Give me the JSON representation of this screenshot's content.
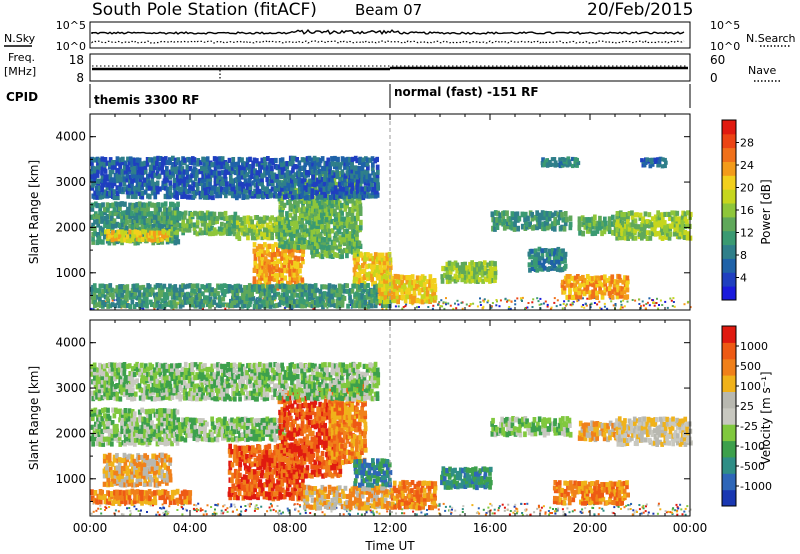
{
  "header": {
    "station": "South Pole Station (fitACF)",
    "beam": "Beam 07",
    "date": "20/Feb/2015"
  },
  "noise_panel": {
    "left_label": "N.Sky",
    "right_label": "N.Search",
    "left_ticks": [
      "10^5",
      "10^0"
    ],
    "right_ticks": [
      "10^5",
      "10^0"
    ]
  },
  "freq_panel": {
    "left_label_1": "Freq.",
    "left_label_2": "[MHz]",
    "left_ticks": [
      "18",
      "8"
    ],
    "right_label": "Nave",
    "right_ticks": [
      "60",
      "0"
    ]
  },
  "cpid": {
    "label": "CPID",
    "segments": [
      {
        "name": "themis 3300 RF",
        "start_h": 0,
        "end_h": 12
      },
      {
        "name": "normal (fast) -151 RF",
        "start_h": 12,
        "end_h": 24
      }
    ]
  },
  "colors": {
    "power": [
      "#1a1adc",
      "#1f3fc0",
      "#1f62a8",
      "#2f7f8a",
      "#3a9a72",
      "#5fa85a",
      "#8ec63a",
      "#c6d61e",
      "#f2d01c",
      "#f39b1a",
      "#f0701a",
      "#ec4414",
      "#e01a10"
    ],
    "velocity": [
      "#1a38b2",
      "#2e66b8",
      "#2f8e86",
      "#3da04c",
      "#80c83e",
      "#c8c8c0",
      "#b8b8b0",
      "#f0b21a",
      "#f0801a",
      "#ee5a14",
      "#e01a10"
    ]
  },
  "chart_data": [
    {
      "type": "heatmap",
      "name": "power",
      "ylabel": "Slant Range [km]",
      "ylim": [
        180,
        4500
      ],
      "y_ticks": [
        "1000",
        "2000",
        "3000",
        "4000"
      ],
      "xlim_hours": [
        0,
        24
      ],
      "colorbar_label": "Power [dB]",
      "colorbar_ticks": [
        "4",
        "8",
        "12",
        "16",
        "20",
        "24",
        "28"
      ],
      "clim": [
        0,
        32
      ],
      "features": [
        {
          "t0": 0.0,
          "t1": 3.5,
          "r0": 1600,
          "r1": 2500,
          "v": 11
        },
        {
          "t0": 0.5,
          "t1": 3.2,
          "r0": 1650,
          "r1": 1900,
          "v": 21
        },
        {
          "t0": 3.2,
          "t1": 5.8,
          "r0": 1800,
          "r1": 2300,
          "v": 12
        },
        {
          "t0": 5.8,
          "t1": 7.8,
          "r0": 1700,
          "r1": 2200,
          "v": 15
        },
        {
          "t0": 6.5,
          "t1": 8.5,
          "r0": 600,
          "r1": 1600,
          "v": 24
        },
        {
          "t0": 7.5,
          "t1": 9.5,
          "r0": 1500,
          "r1": 3000,
          "v": 14
        },
        {
          "t0": 8.8,
          "t1": 10.8,
          "r0": 1300,
          "r1": 3200,
          "v": 13
        },
        {
          "t0": 10.5,
          "t1": 12.0,
          "r0": 700,
          "r1": 1400,
          "v": 20
        },
        {
          "t0": 0.0,
          "t1": 12.0,
          "r0": 200,
          "r1": 700,
          "v": 10
        },
        {
          "t0": 11.5,
          "t1": 13.8,
          "r0": 300,
          "r1": 900,
          "v": 22
        },
        {
          "t0": 0.0,
          "t1": 11.5,
          "r0": 2600,
          "r1": 3500,
          "v": 6
        },
        {
          "t0": 14.0,
          "t1": 16.2,
          "r0": 750,
          "r1": 1200,
          "v": 17
        },
        {
          "t0": 16.0,
          "t1": 19.2,
          "r0": 1900,
          "r1": 2300,
          "v": 10
        },
        {
          "t0": 19.5,
          "t1": 21.5,
          "r0": 1800,
          "r1": 2200,
          "v": 12
        },
        {
          "t0": 21.0,
          "t1": 24.0,
          "r0": 1700,
          "r1": 2300,
          "v": 16
        },
        {
          "t0": 18.8,
          "t1": 21.5,
          "r0": 400,
          "r1": 900,
          "v": 25
        },
        {
          "t0": 17.5,
          "t1": 19.0,
          "r0": 1000,
          "r1": 1500,
          "v": 9
        },
        {
          "t0": 18.0,
          "t1": 19.5,
          "r0": 3300,
          "r1": 3500,
          "v": 8
        },
        {
          "t0": 22.0,
          "t1": 23.0,
          "r0": 3300,
          "r1": 3500,
          "v": 6
        }
      ]
    },
    {
      "type": "heatmap",
      "name": "velocity",
      "ylabel": "Slant Range [km]",
      "ylim": [
        180,
        4500
      ],
      "y_ticks": [
        "1000",
        "2000",
        "3000",
        "4000"
      ],
      "xlim_hours": [
        0,
        24
      ],
      "x_ticks": [
        "00:00",
        "04:00",
        "08:00",
        "12:00",
        "16:00",
        "20:00",
        "00:00"
      ],
      "xlabel": "Time UT",
      "colorbar_label": "Velocity [m s⁻¹]",
      "colorbar_ticks": [
        "1000",
        "500",
        "100",
        "25",
        "-25",
        "-100",
        "-500",
        "-1000"
      ],
      "clim": [
        -1000,
        1000
      ],
      "features": [
        {
          "t0": 0.0,
          "t1": 3.5,
          "r0": 1700,
          "r1": 2500,
          "v": 0
        },
        {
          "t0": 3.5,
          "t1": 7.8,
          "r0": 1800,
          "r1": 2300,
          "v": 0
        },
        {
          "t0": 0.5,
          "t1": 3.2,
          "r0": 800,
          "r1": 1500,
          "v": -300
        },
        {
          "t0": 0.0,
          "t1": 4.0,
          "r0": 400,
          "r1": 700,
          "v": -400
        },
        {
          "t0": 5.5,
          "t1": 8.5,
          "r0": 500,
          "r1": 1700,
          "v": -600
        },
        {
          "t0": 7.5,
          "t1": 10.0,
          "r0": 1000,
          "r1": 2900,
          "v": -800
        },
        {
          "t0": 9.5,
          "t1": 11.0,
          "r0": 1300,
          "r1": 3100,
          "v": -500
        },
        {
          "t0": 8.5,
          "t1": 12.0,
          "r0": 300,
          "r1": 800,
          "v": -300
        },
        {
          "t0": 10.5,
          "t1": 12.0,
          "r0": 800,
          "r1": 1400,
          "v": 150
        },
        {
          "t0": 12.0,
          "t1": 13.8,
          "r0": 300,
          "r1": 900,
          "v": -350
        },
        {
          "t0": 14.0,
          "t1": 16.0,
          "r0": 750,
          "r1": 1200,
          "v": 200
        },
        {
          "t0": 16.0,
          "t1": 19.2,
          "r0": 1900,
          "r1": 2300,
          "v": 0
        },
        {
          "t0": 19.5,
          "t1": 21.5,
          "r0": 1800,
          "r1": 2200,
          "v": -200
        },
        {
          "t0": 21.0,
          "t1": 24.0,
          "r0": 1700,
          "r1": 2300,
          "v": -100
        },
        {
          "t0": 18.5,
          "t1": 21.5,
          "r0": 400,
          "r1": 900,
          "v": -500
        },
        {
          "t0": 0.0,
          "t1": 11.5,
          "r0": 2700,
          "r1": 3500,
          "v": 0
        }
      ]
    }
  ]
}
